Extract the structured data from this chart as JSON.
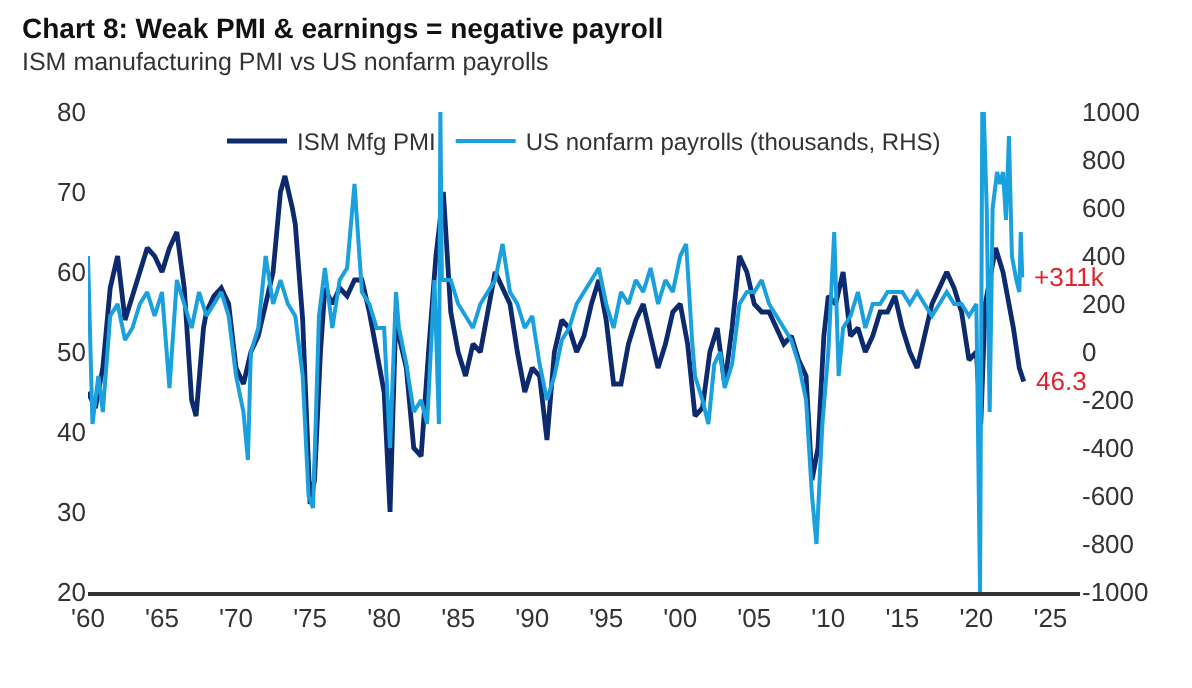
{
  "chart_data": {
    "type": "line",
    "title": "Chart 8: Weak PMI & earnings = negative payroll",
    "subtitle": "ISM manufacturing PMI vs US nonfarm payrolls",
    "xlim": [
      1960,
      2027
    ],
    "xticks": [
      {
        "value": 1960,
        "label": "'60"
      },
      {
        "value": 1965,
        "label": "'65"
      },
      {
        "value": 1970,
        "label": "'70"
      },
      {
        "value": 1975,
        "label": "'75"
      },
      {
        "value": 1980,
        "label": "'80"
      },
      {
        "value": 1985,
        "label": "'85"
      },
      {
        "value": 1990,
        "label": "'90"
      },
      {
        "value": 1995,
        "label": "'95"
      },
      {
        "value": 2000,
        "label": "'00"
      },
      {
        "value": 2005,
        "label": "'05"
      },
      {
        "value": 2010,
        "label": "'10"
      },
      {
        "value": 2015,
        "label": "'15"
      },
      {
        "value": 2020,
        "label": "'20"
      },
      {
        "value": 2025,
        "label": "'25"
      }
    ],
    "ylim": [
      20,
      80
    ],
    "yticks": [
      20,
      30,
      40,
      50,
      60,
      70,
      80
    ],
    "y2lim": [
      -1000,
      1000
    ],
    "y2ticks": [
      -1000,
      -800,
      -600,
      -400,
      -200,
      0,
      200,
      400,
      600,
      800,
      1000
    ],
    "legend": "top",
    "series": [
      {
        "name": "US nonfarm payrolls (thousands, RHS)",
        "color": "#1aa0dc",
        "axis": "y2",
        "x": [
          1960,
          1960.3,
          1960.7,
          1961,
          1961.5,
          1962,
          1962.5,
          1963,
          1963.5,
          1964,
          1964.5,
          1965,
          1965.5,
          1966,
          1966.5,
          1967,
          1967.5,
          1968,
          1968.5,
          1969,
          1969.5,
          1970,
          1970.5,
          1970.8,
          1971,
          1971.5,
          1972,
          1972.5,
          1973,
          1973.5,
          1974,
          1974.5,
          1974.9,
          1975.2,
          1975.6,
          1976,
          1976.5,
          1977,
          1977.5,
          1978,
          1978.5,
          1979,
          1979.5,
          1980,
          1980.4,
          1980.8,
          1981,
          1981.5,
          1982,
          1982.5,
          1982.9,
          1983.4,
          1983.7,
          1983.8,
          1983.9,
          1984.5,
          1985,
          1985.5,
          1986,
          1986.5,
          1987,
          1987.5,
          1988,
          1988.5,
          1989,
          1989.5,
          1990,
          1990.5,
          1991,
          1991.5,
          1992,
          1992.5,
          1993,
          1993.5,
          1994,
          1994.5,
          1995,
          1995.5,
          1996,
          1996.5,
          1997,
          1997.5,
          1998,
          1998.5,
          1999,
          1999.5,
          2000,
          2000.4,
          2000.8,
          2001,
          2001.5,
          2001.9,
          2002.3,
          2002.7,
          2003,
          2003.5,
          2004,
          2004.5,
          2005,
          2005.5,
          2006,
          2006.5,
          2007,
          2007.5,
          2008,
          2008.5,
          2008.9,
          2009.2,
          2009.6,
          2010,
          2010.4,
          2010.7,
          2011,
          2011.5,
          2012,
          2012.5,
          2013,
          2013.5,
          2014,
          2014.5,
          2015,
          2015.5,
          2016,
          2016.5,
          2017,
          2017.5,
          2018,
          2018.5,
          2019,
          2019.5,
          2020,
          2020.25,
          2020.4,
          2020.5,
          2020.7,
          2020.9,
          2021.1,
          2021.4,
          2021.6,
          2021.8,
          2022,
          2022.2,
          2022.4,
          2022.7,
          2022.9,
          2023.0,
          2023.1
        ],
        "values": [
          400,
          -300,
          -100,
          -250,
          150,
          200,
          50,
          100,
          200,
          250,
          150,
          250,
          -150,
          300,
          200,
          100,
          250,
          150,
          200,
          250,
          150,
          -100,
          -250,
          -450,
          0,
          100,
          400,
          200,
          300,
          200,
          150,
          -100,
          -600,
          -650,
          150,
          350,
          100,
          300,
          350,
          700,
          250,
          200,
          100,
          100,
          -400,
          250,
          100,
          -50,
          -250,
          -200,
          -300,
          300,
          -300,
          1000,
          300,
          300,
          200,
          150,
          100,
          200,
          250,
          300,
          450,
          250,
          200,
          100,
          150,
          -50,
          -200,
          -100,
          50,
          100,
          200,
          250,
          300,
          350,
          200,
          100,
          250,
          200,
          300,
          250,
          350,
          200,
          300,
          250,
          400,
          450,
          50,
          -100,
          -200,
          -300,
          -50,
          0,
          -150,
          -50,
          200,
          250,
          250,
          300,
          200,
          150,
          100,
          50,
          -50,
          -200,
          -600,
          -800,
          -300,
          0,
          500,
          -100,
          100,
          150,
          250,
          100,
          200,
          200,
          250,
          250,
          250,
          200,
          250,
          200,
          150,
          200,
          250,
          200,
          200,
          150,
          200,
          -1000,
          1000,
          1000,
          600,
          -250,
          600,
          750,
          700,
          750,
          550,
          900,
          400,
          300,
          250,
          500,
          311
        ]
      },
      {
        "name": "ISM Mfg PMI",
        "color": "#0d2a6e",
        "axis": "y",
        "x": [
          1960,
          1960.5,
          1961,
          1961.5,
          1962,
          1962.5,
          1963,
          1963.5,
          1964,
          1964.5,
          1965,
          1965.5,
          1966,
          1966.5,
          1967,
          1967.3,
          1967.8,
          1968,
          1968.5,
          1969,
          1969.5,
          1970,
          1970.5,
          1971,
          1971.5,
          1972,
          1972.5,
          1973,
          1973.3,
          1973.8,
          1974,
          1974.5,
          1975,
          1975.3,
          1975.7,
          1976,
          1976.5,
          1977,
          1977.5,
          1978,
          1978.5,
          1979,
          1979.5,
          1980,
          1980.4,
          1980.8,
          1981,
          1981.5,
          1982,
          1982.5,
          1983,
          1983.5,
          1984,
          1984.5,
          1985,
          1985.5,
          1986,
          1986.5,
          1987,
          1987.5,
          1988,
          1988.5,
          1989,
          1989.5,
          1990,
          1990.5,
          1991,
          1991.5,
          1992,
          1992.5,
          1993,
          1993.5,
          1994,
          1994.5,
          1995,
          1995.5,
          1996,
          1996.5,
          1997,
          1997.5,
          1998,
          1998.5,
          1999,
          1999.5,
          2000,
          2000.5,
          2001,
          2001.5,
          2002,
          2002.5,
          2003,
          2003.5,
          2004,
          2004.5,
          2005,
          2005.5,
          2006,
          2006.5,
          2007,
          2007.5,
          2008,
          2008.5,
          2008.9,
          2009.3,
          2009.7,
          2010,
          2010.5,
          2011,
          2011.5,
          2012,
          2012.5,
          2013,
          2013.5,
          2014,
          2014.5,
          2015,
          2015.5,
          2016,
          2016.5,
          2017,
          2017.5,
          2018,
          2018.5,
          2019,
          2019.5,
          2020,
          2020.3,
          2020.6,
          2021,
          2021.3,
          2021.8,
          2022,
          2022.5,
          2022.9,
          2023.2
        ],
        "values": [
          45,
          43,
          48,
          58,
          62,
          54,
          57,
          60,
          63,
          62,
          60,
          63,
          65,
          58,
          44,
          42,
          53,
          55,
          57,
          58,
          56,
          48,
          46,
          50,
          52,
          56,
          60,
          70,
          72,
          68,
          66,
          54,
          31,
          34,
          50,
          58,
          56,
          58,
          57,
          59,
          59,
          55,
          50,
          45,
          30,
          55,
          52,
          48,
          38,
          37,
          50,
          62,
          70,
          55,
          50,
          47,
          51,
          50,
          55,
          60,
          58,
          56,
          50,
          45,
          48,
          47,
          39,
          50,
          54,
          53,
          50,
          52,
          56,
          59,
          54,
          46,
          46,
          51,
          54,
          56,
          52,
          48,
          51,
          55,
          56,
          51,
          42,
          43,
          50,
          53,
          46,
          53,
          62,
          60,
          56,
          55,
          55,
          53,
          51,
          52,
          49,
          47,
          34,
          38,
          52,
          57,
          56,
          60,
          52,
          53,
          50,
          52,
          55,
          55,
          57,
          53,
          50,
          48,
          52,
          56,
          58,
          60,
          58,
          55,
          49,
          50,
          41,
          56,
          60,
          63,
          60,
          58,
          53,
          48,
          46.3
        ]
      }
    ],
    "annotations": [
      "+311k",
      "46.3"
    ]
  }
}
